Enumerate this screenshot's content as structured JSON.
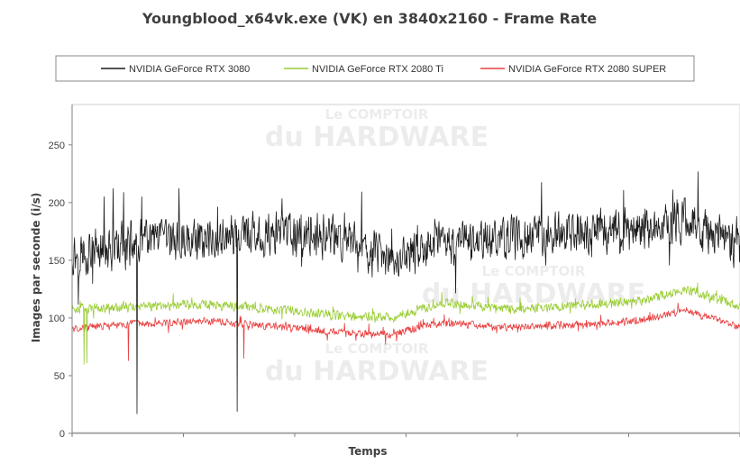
{
  "chart_data": {
    "type": "line",
    "title": "Youngblood_x64vk.exe (VK) en 3840x2160 - Frame Rate",
    "xlabel": "Temps",
    "ylabel": "Images par seconde (i/s)",
    "ylim": [
      0,
      285
    ],
    "yticks": [
      0,
      50,
      100,
      150,
      200,
      250
    ],
    "xtick_count": 6,
    "grid": false,
    "legend_position": "top",
    "watermark": [
      "Le COMPTOIR",
      "du HARDWARE"
    ],
    "samples": 1400,
    "series": [
      {
        "name": "NVIDIA GeForce RTX 3080",
        "color": "#1a1a1a",
        "approx_shape": {
          "x": [
            0,
            0.1,
            0.2,
            0.3,
            0.4,
            0.48,
            0.55,
            0.65,
            0.75,
            0.85,
            0.92,
            1.0
          ],
          "y": [
            155,
            165,
            170,
            172,
            170,
            148,
            165,
            170,
            172,
            178,
            185,
            160
          ]
        },
        "noise": 22,
        "dips": [
          {
            "x": 0.097,
            "y": 17
          },
          {
            "x": 0.247,
            "y": 19
          }
        ]
      },
      {
        "name": "NVIDIA GeForce RTX 2080 Ti",
        "color": "#99cc33",
        "approx_shape": {
          "x": [
            0,
            0.1,
            0.2,
            0.3,
            0.4,
            0.48,
            0.55,
            0.65,
            0.75,
            0.85,
            0.92,
            1.0
          ],
          "y": [
            108,
            110,
            112,
            108,
            102,
            100,
            113,
            108,
            110,
            115,
            125,
            110
          ]
        },
        "noise": 5,
        "dips": [
          {
            "x": 0.018,
            "y": 60
          },
          {
            "x": 0.022,
            "y": 61
          }
        ]
      },
      {
        "name": "NVIDIA GeForce RTX 2080 SUPER",
        "color": "#e84040",
        "approx_shape": {
          "x": [
            0,
            0.1,
            0.2,
            0.3,
            0.4,
            0.48,
            0.55,
            0.65,
            0.75,
            0.85,
            0.92,
            1.0
          ],
          "y": [
            91,
            95,
            97,
            93,
            87,
            86,
            96,
            92,
            94,
            98,
            107,
            92
          ]
        },
        "noise": 4,
        "dips": [
          {
            "x": 0.084,
            "y": 63
          },
          {
            "x": 0.257,
            "y": 65
          }
        ]
      }
    ]
  }
}
